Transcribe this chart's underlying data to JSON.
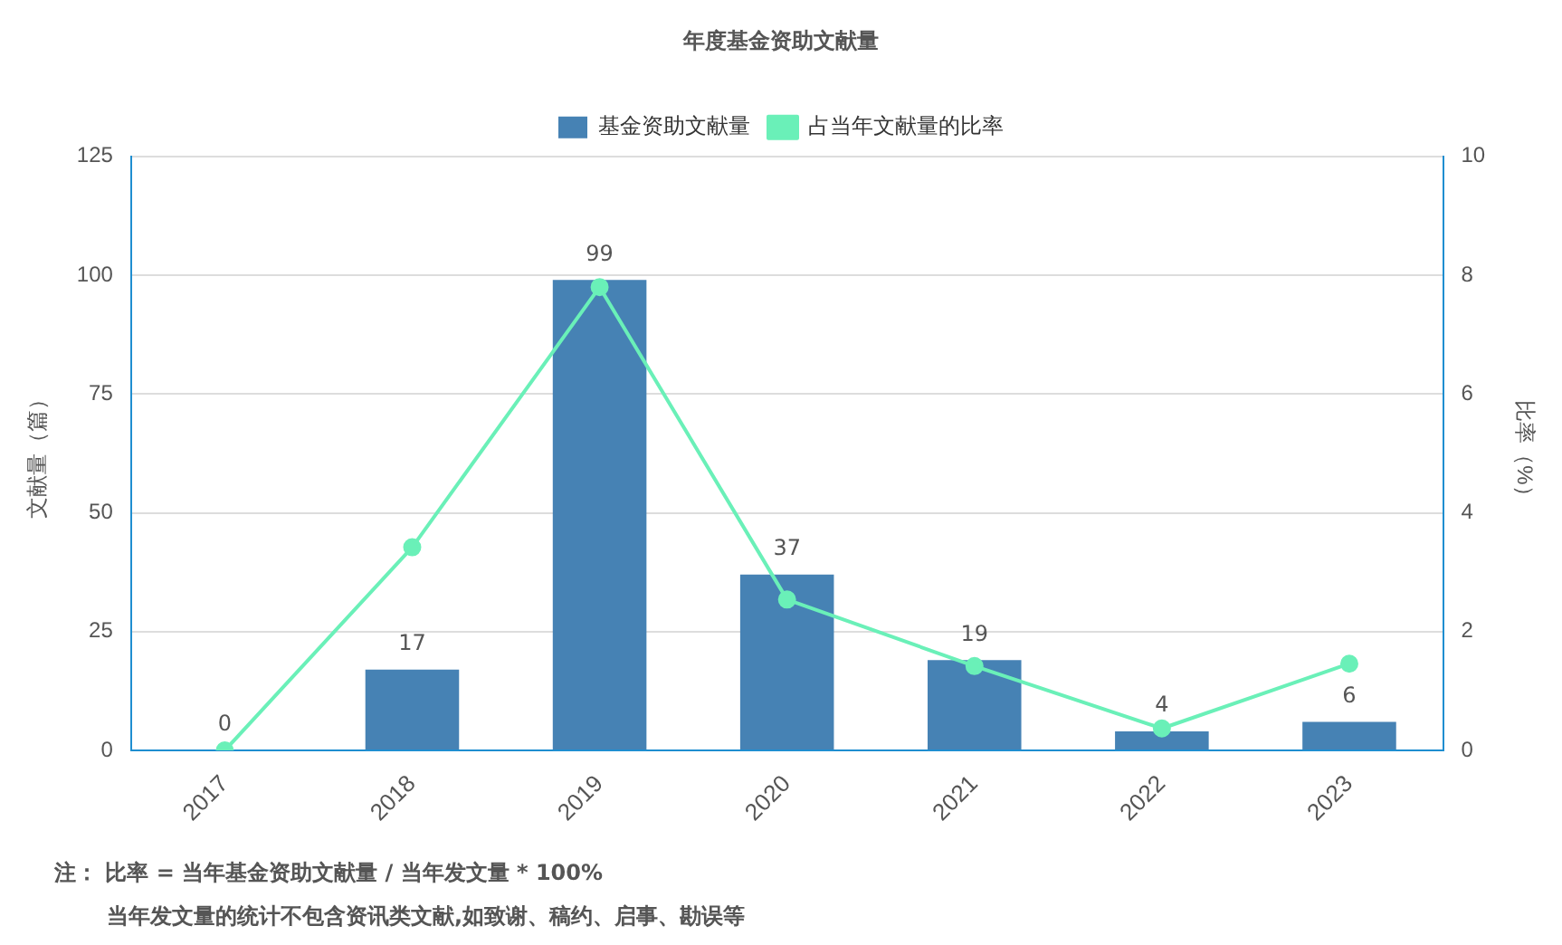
{
  "chart_data": {
    "type": "bar",
    "title": "年度基金资助文献量",
    "categories": [
      "2017",
      "2018",
      "2019",
      "2020",
      "2021",
      "2022",
      "2023"
    ],
    "series": [
      {
        "name": "基金资助文献量",
        "color": "#4682b4",
        "values": [
          0,
          17,
          99,
          37,
          19,
          4,
          6
        ],
        "value_labels": [
          "0",
          "17",
          "99",
          "37",
          "19",
          "4",
          "6"
        ]
      },
      {
        "name": "占当年文献量的比率",
        "type": "line",
        "axis": "y2",
        "color": "#6af0b8",
        "values": [
          0,
          3.42,
          7.8,
          2.54,
          1.42,
          0.37,
          1.46
        ]
      }
    ],
    "ylabel": "文献量（篇）",
    "y2label": "比率（%）",
    "ylim": [
      0,
      125
    ],
    "yticks": [
      0,
      25,
      50,
      75,
      100,
      125
    ],
    "y2lim": [
      0,
      10
    ],
    "y2ticks": [
      0,
      2,
      4,
      6,
      8,
      10
    ],
    "grid": "y",
    "legend": "top",
    "marker": "circle",
    "line_style": "solid",
    "annotations": [
      "注： 比率 = 当年基金资助文献量 / 当年发文量 * 100%",
      "当年发文量的统计不包含资讯类文献,如致谢、稿约、启事、勘误等"
    ]
  }
}
